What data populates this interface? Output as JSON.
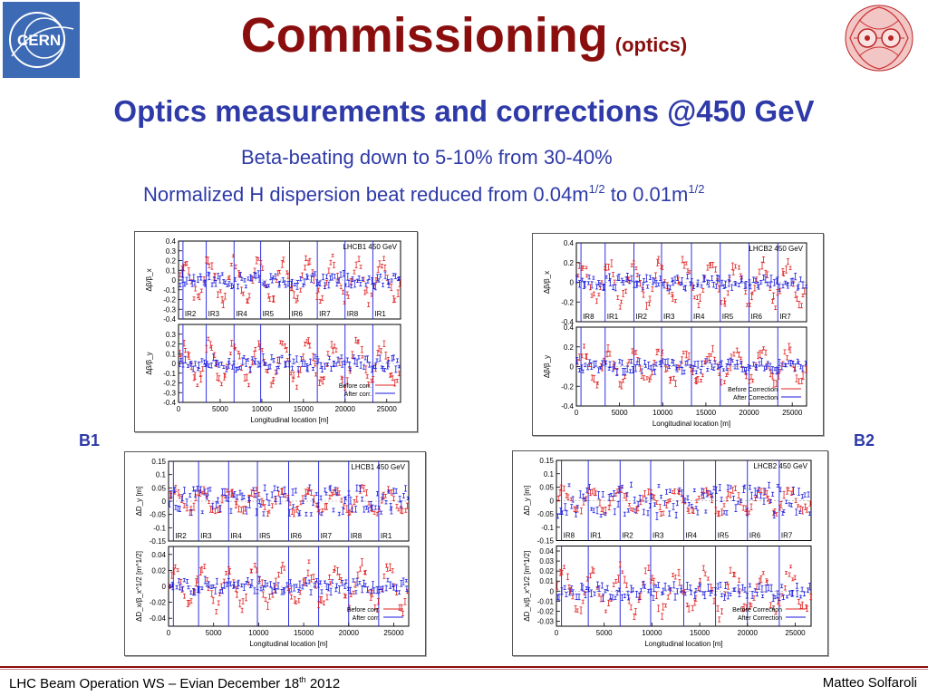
{
  "header": {
    "title": "Commissioning",
    "title_suffix": "(optics)",
    "cern_logo_text": "CERN"
  },
  "subtitle": "Optics measurements and corrections @450 GeV",
  "bullets": {
    "beta_beating": "Beta-beating down to 5-10% from 30-40%",
    "dispersion_prefix": "Normalized H dispersion beat reduced from 0.04m",
    "dispersion_mid": " to 0.01m",
    "exponent": "1/2"
  },
  "labels": {
    "b1": "B1",
    "b2": "B2"
  },
  "footer": {
    "left_prefix": "LHC Beam Operation WS – Evian December 18",
    "left_sup": "th",
    "left_suffix": " 2012",
    "right": "Matteo Solfaroli"
  },
  "colors": {
    "title": "#8b0e0e",
    "accent_blue": "#2e3aa8",
    "before_series": "#e02020",
    "after_series": "#1a1ae0",
    "ir_markers": "#1a1ae0"
  },
  "chart_data": [
    {
      "type": "scatter",
      "id": "b1_beta",
      "tag": "LHCB1 450 GeV",
      "xlabel": "Longitudinal location [m]",
      "xlim": [
        0,
        26659
      ],
      "xticks": [
        "0",
        "5000",
        "10000",
        "15000",
        "20000",
        "25000"
      ],
      "ir_labels": [
        "IR2",
        "IR3",
        "IR4",
        "IR5",
        "IR6",
        "IR7",
        "IR8",
        "IR1"
      ],
      "legend": [
        "Before corr.",
        "After corr."
      ],
      "panels": [
        {
          "ylabel": "Δβ/β_x",
          "ylim": [
            -0.4,
            0.4
          ],
          "yticks": [
            "0.4",
            "0.3",
            "0.2",
            "0.1",
            "0",
            "-0.1",
            "-0.2",
            "-0.3",
            "-0.4"
          ],
          "before_amp": 0.25,
          "after_amp": 0.07
        },
        {
          "ylabel": "Δβ/β_y",
          "ylim": [
            -0.4,
            0.4
          ],
          "yticks": [
            "0.3",
            "0.2",
            "0.1",
            "0",
            "-0.1",
            "-0.2",
            "-0.3",
            "-0.4"
          ],
          "before_amp": 0.25,
          "after_amp": 0.07
        }
      ]
    },
    {
      "type": "scatter",
      "id": "b2_beta",
      "tag": "LHCB2 450 GeV",
      "xlabel": "Longitudinal location [m]",
      "xlim": [
        0,
        26659
      ],
      "xticks": [
        "0",
        "5000",
        "10000",
        "15000",
        "20000",
        "25000"
      ],
      "ir_labels": [
        "IR8",
        "IR1",
        "IR2",
        "IR3",
        "IR4",
        "IR5",
        "IR6",
        "IR7"
      ],
      "legend": [
        "Before Correction",
        "After Correction"
      ],
      "panels": [
        {
          "ylabel": "Δβ/β_x",
          "ylim": [
            -0.4,
            0.4
          ],
          "yticks": [
            "0.4",
            "0.2",
            "0",
            "-0.2",
            "-0.4"
          ],
          "before_amp": 0.25,
          "after_amp": 0.06
        },
        {
          "ylabel": "Δβ/β_y",
          "ylim": [
            -0.4,
            0.4
          ],
          "yticks": [
            "0.4",
            "0.2",
            "0",
            "-0.2",
            "-0.4"
          ],
          "before_amp": 0.2,
          "after_amp": 0.06
        }
      ]
    },
    {
      "type": "scatter",
      "id": "b1_disp",
      "tag": "LHCB1 450 GeV",
      "xlabel": "Longitudinal location [m]",
      "xlim": [
        0,
        26659
      ],
      "xticks": [
        "0",
        "5000",
        "10000",
        "15000",
        "20000",
        "25000"
      ],
      "ir_labels": [
        "IR2",
        "IR3",
        "IR4",
        "IR5",
        "IR6",
        "IR7",
        "IR8",
        "IR1"
      ],
      "legend": [
        "Before corr.",
        "After corr."
      ],
      "panels": [
        {
          "ylabel": "ΔD_y [m]",
          "ylim": [
            -0.15,
            0.15
          ],
          "yticks": [
            "0.15",
            "0.1",
            "0.05",
            "0",
            "-0.05",
            "-0.1",
            "-0.15"
          ],
          "before_amp": 0.05,
          "after_amp": 0.05
        },
        {
          "ylabel": "ΔD_x/β_x^1/2 [m^1/2]",
          "ylim": [
            -0.05,
            0.05
          ],
          "yticks": [
            "0.04",
            "0.02",
            "0",
            "-0.02",
            "-0.04"
          ],
          "before_amp": 0.03,
          "after_amp": 0.008
        }
      ]
    },
    {
      "type": "scatter",
      "id": "b2_disp",
      "tag": "LHCB2 450 GeV",
      "xlabel": "Longitudinal location [m]",
      "xlim": [
        0,
        26659
      ],
      "xticks": [
        "0",
        "5000",
        "10000",
        "15000",
        "20000",
        "25000"
      ],
      "ir_labels": [
        "IR8",
        "IR1",
        "IR2",
        "IR3",
        "IR4",
        "IR5",
        "IR6",
        "IR7"
      ],
      "legend": [
        "Before Correction",
        "After Correction"
      ],
      "panels": [
        {
          "ylabel": "ΔD_y [m]",
          "ylim": [
            -0.15,
            0.15
          ],
          "yticks": [
            "0.15",
            "0.1",
            "0.05",
            "0",
            "-0.05",
            "-0.1",
            "-0.15"
          ],
          "before_amp": 0.05,
          "after_amp": 0.06
        },
        {
          "ylabel": "ΔD_x/β_x^1/2 [m^1/2]",
          "ylim": [
            -0.035,
            0.045
          ],
          "yticks": [
            "0.04",
            "0.03",
            "0.02",
            "0.01",
            "0",
            "-0.01",
            "-0.02",
            "-0.03"
          ],
          "before_amp": 0.025,
          "after_amp": 0.007
        }
      ]
    }
  ]
}
